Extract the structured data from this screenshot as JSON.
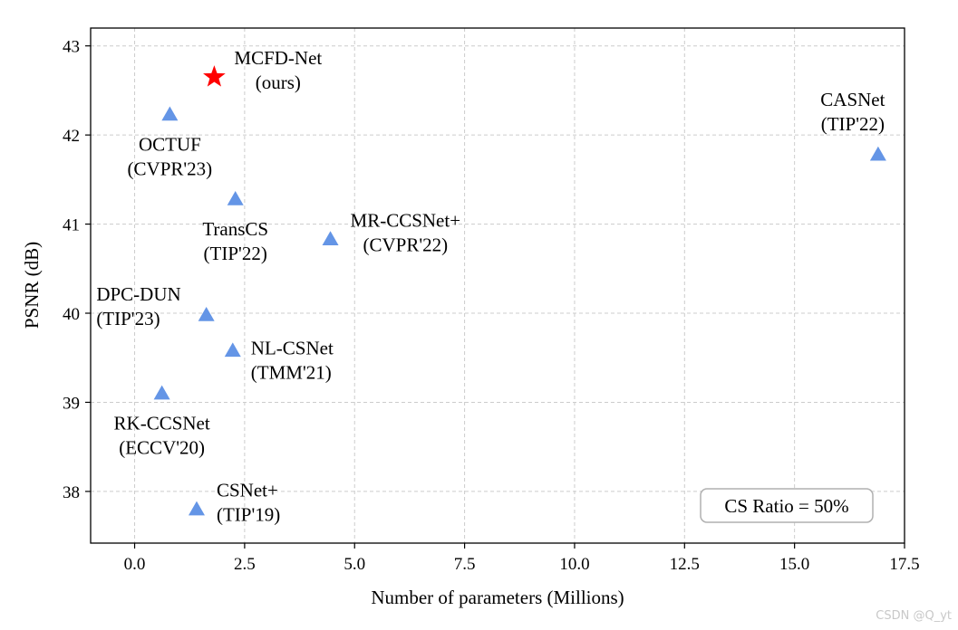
{
  "chart_data": {
    "type": "scatter",
    "xlabel": "Number of parameters (Millions)",
    "ylabel": "PSNR (dB)",
    "xlim": [
      -1.0,
      17.5
    ],
    "ylim": [
      37.42,
      43.2
    ],
    "xticks": [
      0.0,
      2.5,
      5.0,
      7.5,
      10.0,
      12.5,
      15.0,
      17.5
    ],
    "xtick_labels": [
      "0.0",
      "2.5",
      "5.0",
      "7.5",
      "10.0",
      "12.5",
      "15.0",
      "17.5"
    ],
    "yticks": [
      38,
      39,
      40,
      41,
      42,
      43
    ],
    "ytick_labels": [
      "38",
      "39",
      "40",
      "41",
      "42",
      "43"
    ],
    "grid": true,
    "colors": {
      "ours": "#ff0000",
      "others": "#6495e6",
      "grid": "#cccccc"
    },
    "points": [
      {
        "x": 1.81,
        "y": 42.65,
        "marker": "star",
        "label": [
          "MCFD-Net",
          "(ours)"
        ],
        "label_pos": "right-above"
      },
      {
        "x": 0.8,
        "y": 42.23,
        "marker": "triangle",
        "label": [
          "OCTUF",
          "(CVPR'23)"
        ],
        "label_pos": "below"
      },
      {
        "x": 16.9,
        "y": 41.78,
        "marker": "triangle",
        "label": [
          "CASNet",
          "(TIP'22)"
        ],
        "label_pos": "above-left"
      },
      {
        "x": 2.29,
        "y": 41.28,
        "marker": "triangle",
        "label": [
          "TransCS",
          "(TIP'22)"
        ],
        "label_pos": "below"
      },
      {
        "x": 4.45,
        "y": 40.83,
        "marker": "triangle",
        "label": [
          "MR-CCSNet+",
          "(CVPR'22)"
        ],
        "label_pos": "right-above"
      },
      {
        "x": 1.63,
        "y": 39.98,
        "marker": "triangle",
        "label": [
          "DPC-DUN",
          "(TIP'23)"
        ],
        "label_pos": "left"
      },
      {
        "x": 2.23,
        "y": 39.58,
        "marker": "triangle",
        "label": [
          "NL-CSNet",
          "(TMM'21)"
        ],
        "label_pos": "right"
      },
      {
        "x": 0.62,
        "y": 39.1,
        "marker": "triangle",
        "label": [
          "RK-CCSNet",
          "(ECCV'20)"
        ],
        "label_pos": "below"
      },
      {
        "x": 1.41,
        "y": 37.8,
        "marker": "triangle",
        "label": [
          "CSNet+",
          "(TIP'19)"
        ],
        "label_pos": "right-above"
      }
    ],
    "annotation": "CS Ratio = 50%"
  },
  "watermark": "CSDN @Q_yt"
}
